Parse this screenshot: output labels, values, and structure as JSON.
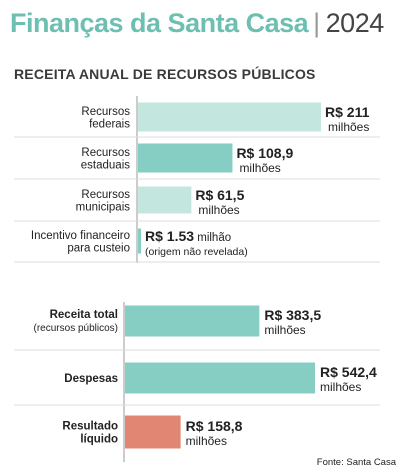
{
  "header": {
    "title": "Finanças da Santa Casa",
    "year": "2024",
    "subtitle": "RECEITA ANUAL DE RECURSOS PÚBLICOS"
  },
  "colors": {
    "title": "#6dbfb2",
    "dark_teal": "#86cec3",
    "light_teal": "#c3e6df",
    "salmon": "#e08673",
    "axis": "#9a9a9a",
    "separator": "#dcdcdc"
  },
  "chart_data": [
    {
      "type": "bar",
      "orientation": "horizontal",
      "categories": [
        "Recursos federais",
        "Recursos estaduais",
        "Recursos municipais",
        "Incentivo financeiro para custeio"
      ],
      "values": [
        211,
        108.9,
        61.5,
        1.53
      ],
      "unit": "R$ milhões",
      "rows": [
        {
          "label": [
            "Recursos",
            "federais"
          ],
          "value": 211,
          "main": "R$ 211",
          "small": [
            "milhões"
          ],
          "color": "light_teal"
        },
        {
          "label": [
            "Recursos",
            "estaduais"
          ],
          "value": 108.9,
          "main": "R$ 108,9",
          "small": [
            "milhões"
          ],
          "color": "dark_teal"
        },
        {
          "label": [
            "Recursos",
            "municipais"
          ],
          "value": 61.5,
          "main": "R$ 61,5",
          "small": [
            "milhões"
          ],
          "color": "light_teal"
        },
        {
          "label": [
            "Incentivo financeiro",
            "para custeio"
          ],
          "value": 1.53,
          "main": "R$ 1.53",
          "inline": " milhão",
          "small": [
            "(origem não revelada)"
          ],
          "color": "dark_teal"
        }
      ]
    },
    {
      "type": "bar",
      "orientation": "horizontal",
      "categories": [
        "Receita total (recursos públicos)",
        "Despesas",
        "Resultado líquido"
      ],
      "values": [
        383.5,
        542.4,
        158.8
      ],
      "unit": "R$ milhões",
      "rows": [
        {
          "label": [
            "Receita total"
          ],
          "sublabel": "(recursos públicos)",
          "value": 383.5,
          "main": "R$ 383,5",
          "small": [
            "milhões"
          ],
          "color": "dark_teal"
        },
        {
          "label": [
            "Despesas"
          ],
          "value": 542.4,
          "main": "R$ 542,4",
          "small": [
            "milhões"
          ],
          "color": "dark_teal"
        },
        {
          "label": [
            "Resultado",
            "líquido"
          ],
          "value": 158.8,
          "main": "R$ 158,8",
          "small": [
            "milhões"
          ],
          "color": "salmon"
        }
      ]
    }
  ],
  "footer": {
    "source": "Fonte: Santa Casa"
  }
}
